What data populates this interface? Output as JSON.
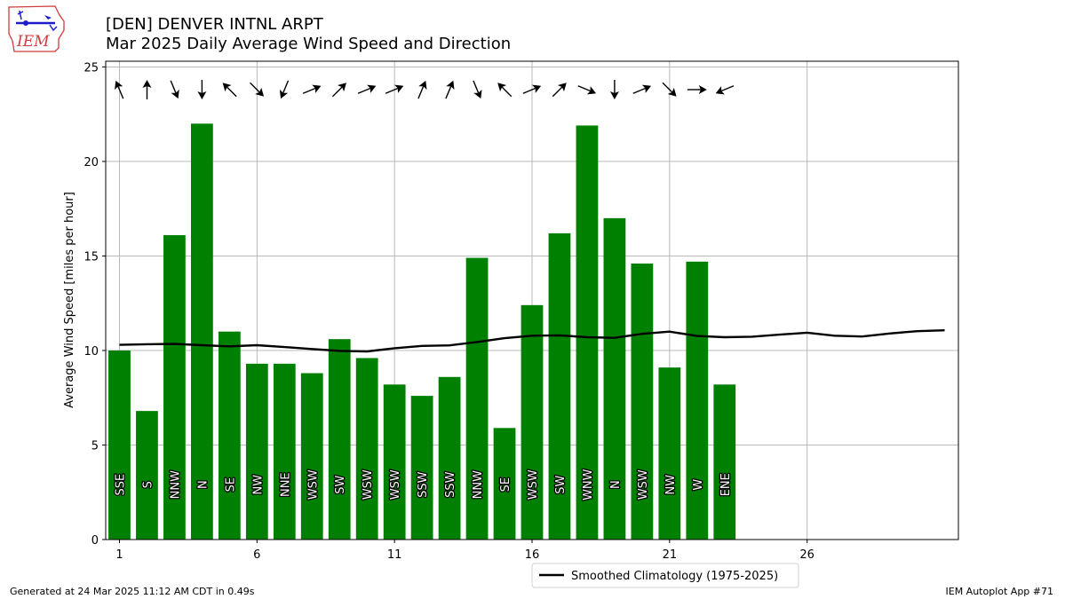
{
  "header": {
    "title_line1": "[DEN] DENVER INTNL ARPT",
    "title_line2": "Mar 2025 Daily Average Wind Speed and Direction"
  },
  "logo": {
    "text": "IEM"
  },
  "footer": {
    "left": "Generated at 24 Mar 2025 11:12 AM CDT in 0.49s",
    "right": "IEM Autoplot App #71"
  },
  "chart_data": {
    "type": "bar",
    "ylabel": "Average Wind Speed [miles per hour]",
    "xlabel": "",
    "xlim": [
      0.5,
      31.5
    ],
    "ylim": [
      0,
      25.3
    ],
    "x_ticks": [
      1,
      6,
      11,
      16,
      21,
      26
    ],
    "y_ticks": [
      0,
      5,
      10,
      15,
      20,
      25
    ],
    "grid": true,
    "bar_color": "#008000",
    "legend_position": "below-center",
    "days": [
      1,
      2,
      3,
      4,
      5,
      6,
      7,
      8,
      9,
      10,
      11,
      12,
      13,
      14,
      15,
      16,
      17,
      18,
      19,
      20,
      21,
      22,
      23
    ],
    "values": [
      10.0,
      6.8,
      16.1,
      22.0,
      11.0,
      9.3,
      9.3,
      8.8,
      10.6,
      9.6,
      8.2,
      7.6,
      8.6,
      14.9,
      5.9,
      12.4,
      16.2,
      21.9,
      17.0,
      14.6,
      9.1,
      14.7,
      8.2
    ],
    "directions": [
      "SSE",
      "S",
      "NNW",
      "N",
      "SE",
      "NW",
      "NNE",
      "WSW",
      "SW",
      "WSW",
      "WSW",
      "SSW",
      "SSW",
      "NNW",
      "SE",
      "WSW",
      "SW",
      "WNW",
      "N",
      "WSW",
      "NW",
      "W",
      "ENE"
    ],
    "climatology": {
      "name": "Smoothed Climatology (1975-2025)",
      "color": "#000000",
      "x": [
        1,
        2,
        3,
        4,
        5,
        6,
        7,
        8,
        9,
        10,
        11,
        12,
        13,
        14,
        15,
        16,
        17,
        18,
        19,
        20,
        21,
        22,
        23,
        24,
        25,
        26,
        27,
        28,
        29,
        30,
        31
      ],
      "values": [
        10.3,
        10.33,
        10.35,
        10.28,
        10.22,
        10.28,
        10.18,
        10.08,
        9.98,
        9.95,
        10.12,
        10.24,
        10.27,
        10.45,
        10.65,
        10.78,
        10.8,
        10.7,
        10.67,
        10.88,
        11.0,
        10.77,
        10.7,
        10.73,
        10.84,
        10.94,
        10.78,
        10.74,
        10.9,
        11.02,
        11.07
      ]
    }
  }
}
